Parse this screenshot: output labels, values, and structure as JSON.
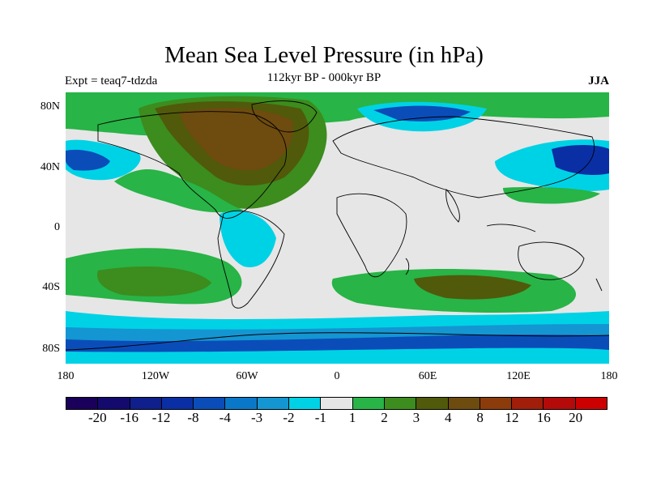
{
  "title": "Mean Sea Level Pressure (in hPa)",
  "experiment": "Expt = teaq7-tdzda",
  "period": "112kyr BP - 000kyr BP",
  "season": "JJA",
  "lat_labels": [
    "80N",
    "40N",
    "0",
    "40S",
    "80S"
  ],
  "lon_labels": [
    "180",
    "120W",
    "60W",
    "0",
    "60E",
    "120E",
    "180"
  ],
  "colorbar": {
    "colors": [
      "#1a005a",
      "#140a6e",
      "#0f1f8c",
      "#0a2fa5",
      "#0a4db9",
      "#0a78c8",
      "#1496d2",
      "#00d2e6",
      "#e6e6e6",
      "#28b446",
      "#3c8c1e",
      "#505a0a",
      "#6e4b0f",
      "#8c3c0a",
      "#a01e0a",
      "#b40a0a",
      "#cc0000"
    ],
    "labels": [
      "-20",
      "-16",
      "-12",
      "-8",
      "-4",
      "-3",
      "-2",
      "-1",
      "1",
      "2",
      "3",
      "4",
      "8",
      "12",
      "16",
      "20"
    ]
  },
  "map_colors": {
    "neutral": "#e6e6e6",
    "green": "#28b446",
    "darkgreen": "#3c8c1e",
    "olive": "#505a0a",
    "brown": "#6e4b0f",
    "cyan": "#00d2e6",
    "skyblue": "#1496d2",
    "blue": "#0a4db9",
    "navy": "#0a2fa5"
  }
}
